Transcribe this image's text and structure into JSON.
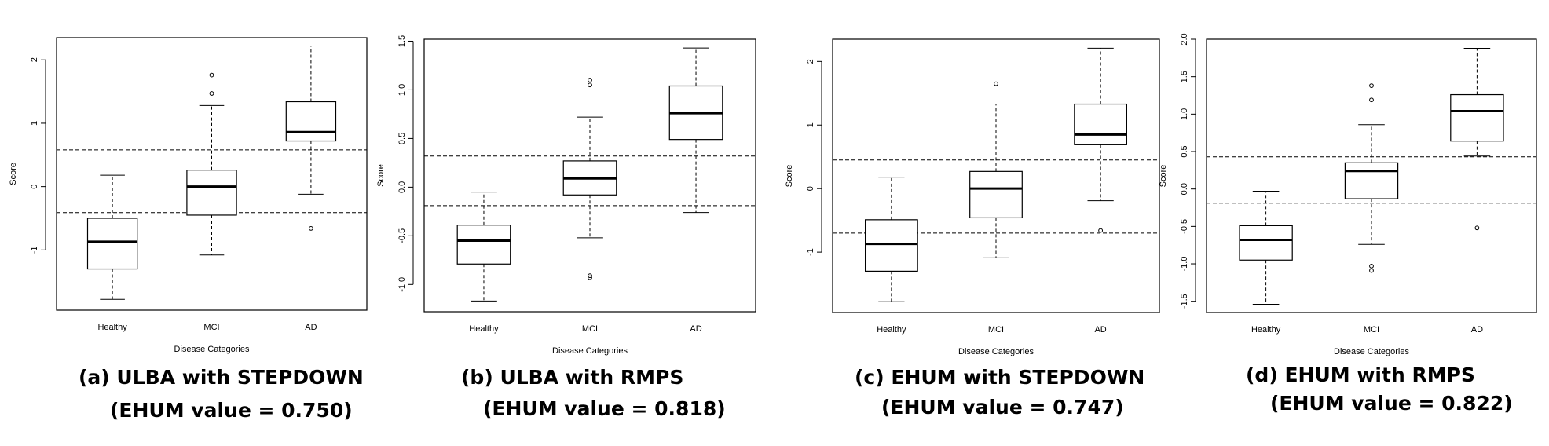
{
  "chart_data": [
    {
      "type": "box",
      "ylabel": "Score",
      "xlabel": "Disease Categories",
      "categories": [
        "Healthy",
        "MCI",
        "AD"
      ],
      "yticks": [
        "-1",
        "0",
        "1",
        "2"
      ],
      "ylim": [
        -1.95,
        2.35
      ],
      "boxes": [
        {
          "min": -1.78,
          "q1": -1.3,
          "median": -0.87,
          "q3": -0.5,
          "max": 0.18,
          "outliers": []
        },
        {
          "min": -1.08,
          "q1": -0.45,
          "median": 0.0,
          "q3": 0.26,
          "max": 1.28,
          "outliers": [
            1.47,
            1.76
          ]
        },
        {
          "min": -0.12,
          "q1": 0.72,
          "median": 0.86,
          "q3": 1.34,
          "max": 2.22,
          "outliers": [
            -0.66
          ]
        }
      ],
      "hlines": [
        0.58,
        -0.41
      ],
      "caption_line1": "(a) ULBA with STEPDOWN",
      "caption_line2": "(EHUM value = 0.750)"
    },
    {
      "type": "box",
      "ylabel": "Score",
      "xlabel": "Disease Categories",
      "categories": [
        "Healthy",
        "MCI",
        "AD"
      ],
      "yticks": [
        "-1.0",
        "-0.5",
        "0.0",
        "0.5",
        "1.0",
        "1.5"
      ],
      "ylim": [
        -1.28,
        1.52
      ],
      "boxes": [
        {
          "min": -1.17,
          "q1": -0.79,
          "median": -0.55,
          "q3": -0.39,
          "max": -0.05,
          "outliers": []
        },
        {
          "min": -0.52,
          "q1": -0.08,
          "median": 0.09,
          "q3": 0.27,
          "max": 0.72,
          "outliers": [
            -0.91,
            -0.93,
            1.05,
            1.1
          ]
        },
        {
          "min": -0.26,
          "q1": 0.49,
          "median": 0.76,
          "q3": 1.04,
          "max": 1.43,
          "outliers": []
        }
      ],
      "hlines": [
        0.32,
        -0.19
      ],
      "caption_line1": "(b) ULBA with RMPS",
      "caption_line2": "(EHUM value = 0.818)"
    },
    {
      "type": "box",
      "ylabel": "Score",
      "xlabel": "Disease Categories",
      "categories": [
        "Healthy",
        "MCI",
        "AD"
      ],
      "yticks": [
        "-1",
        "0",
        "1",
        "2"
      ],
      "ylim": [
        -1.95,
        2.35
      ],
      "boxes": [
        {
          "min": -1.78,
          "q1": -1.3,
          "median": -0.87,
          "q3": -0.49,
          "max": 0.18,
          "outliers": []
        },
        {
          "min": -1.09,
          "q1": -0.46,
          "median": 0.0,
          "q3": 0.27,
          "max": 1.33,
          "outliers": [
            1.65
          ]
        },
        {
          "min": -0.19,
          "q1": 0.69,
          "median": 0.85,
          "q3": 1.33,
          "max": 2.21,
          "outliers": [
            -0.66
          ]
        }
      ],
      "hlines": [
        0.45,
        -0.7
      ],
      "caption_line1": "(c) EHUM with STEPDOWN",
      "caption_line2": "(EHUM value = 0.747)"
    },
    {
      "type": "box",
      "ylabel": "Score",
      "xlabel": "Disease Categories",
      "categories": [
        "Healthy",
        "MCI",
        "AD"
      ],
      "yticks": [
        "-1.5",
        "-1.0",
        "-0.5",
        "0.0",
        "0.5",
        "1.0",
        "1.5",
        "2.0"
      ],
      "ylim": [
        -1.65,
        2.0
      ],
      "boxes": [
        {
          "min": -1.54,
          "q1": -0.95,
          "median": -0.68,
          "q3": -0.49,
          "max": -0.03,
          "outliers": []
        },
        {
          "min": -0.74,
          "q1": -0.13,
          "median": 0.24,
          "q3": 0.35,
          "max": 0.86,
          "outliers": [
            -1.03,
            -1.09,
            1.19,
            1.38
          ]
        },
        {
          "min": 0.44,
          "q1": 0.64,
          "median": 1.04,
          "q3": 1.26,
          "max": 1.88,
          "outliers": [
            -0.52
          ]
        }
      ],
      "hlines": [
        0.43,
        -0.19
      ],
      "caption_line1": "(d) EHUM with RMPS",
      "caption_line2": "(EHUM value = 0.822)"
    }
  ]
}
